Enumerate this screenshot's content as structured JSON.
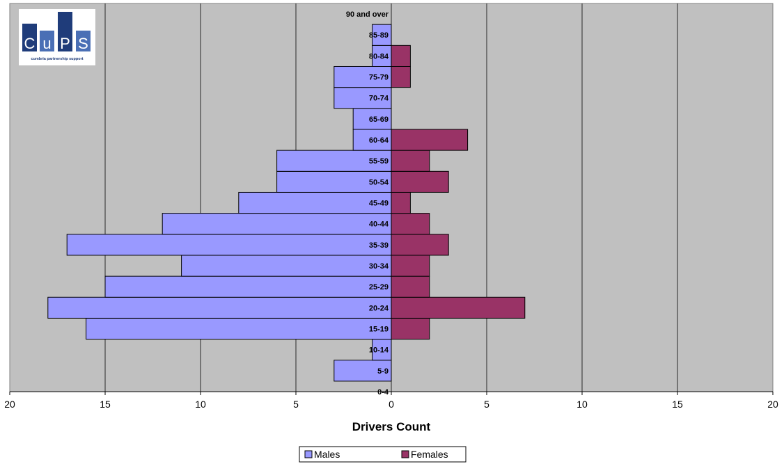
{
  "logo": {
    "letters": [
      "C",
      "u",
      "P",
      "S"
    ],
    "caption": "cumbria partnership support"
  },
  "colors": {
    "plot_bg": "#c0c0c0",
    "males": "#9999ff",
    "females": "#993366",
    "logo_dark": "#1f3c7a",
    "logo_light": "#4a6fb5"
  },
  "chart_data": {
    "type": "bar",
    "orientation": "horizontal",
    "layout": "population-pyramid",
    "categories": [
      "0-4",
      "5-9",
      "10-14",
      "15-19",
      "20-24",
      "25-29",
      "30-34",
      "35-39",
      "40-44",
      "45-49",
      "50-54",
      "55-59",
      "60-64",
      "65-69",
      "70-74",
      "75-79",
      "80-84",
      "85-89",
      "90 and over"
    ],
    "series": [
      {
        "name": "Males",
        "values": [
          0,
          3,
          1,
          16,
          18,
          15,
          11,
          17,
          12,
          8,
          6,
          6,
          2,
          2,
          3,
          3,
          1,
          1,
          0
        ]
      },
      {
        "name": "Females",
        "values": [
          0,
          0,
          0,
          2,
          7,
          2,
          2,
          3,
          2,
          1,
          3,
          2,
          4,
          0,
          0,
          1,
          1,
          0,
          0
        ]
      }
    ],
    "xlabel": "Drivers Count",
    "ylabel": "",
    "xlim": [
      -20,
      20
    ],
    "xticks": [
      -20,
      -15,
      -10,
      -5,
      0,
      5,
      10,
      15,
      20
    ],
    "xtick_labels": [
      "20",
      "15",
      "10",
      "5",
      "0",
      "5",
      "10",
      "15",
      "20"
    ],
    "grid": true,
    "legend_position": "bottom"
  }
}
